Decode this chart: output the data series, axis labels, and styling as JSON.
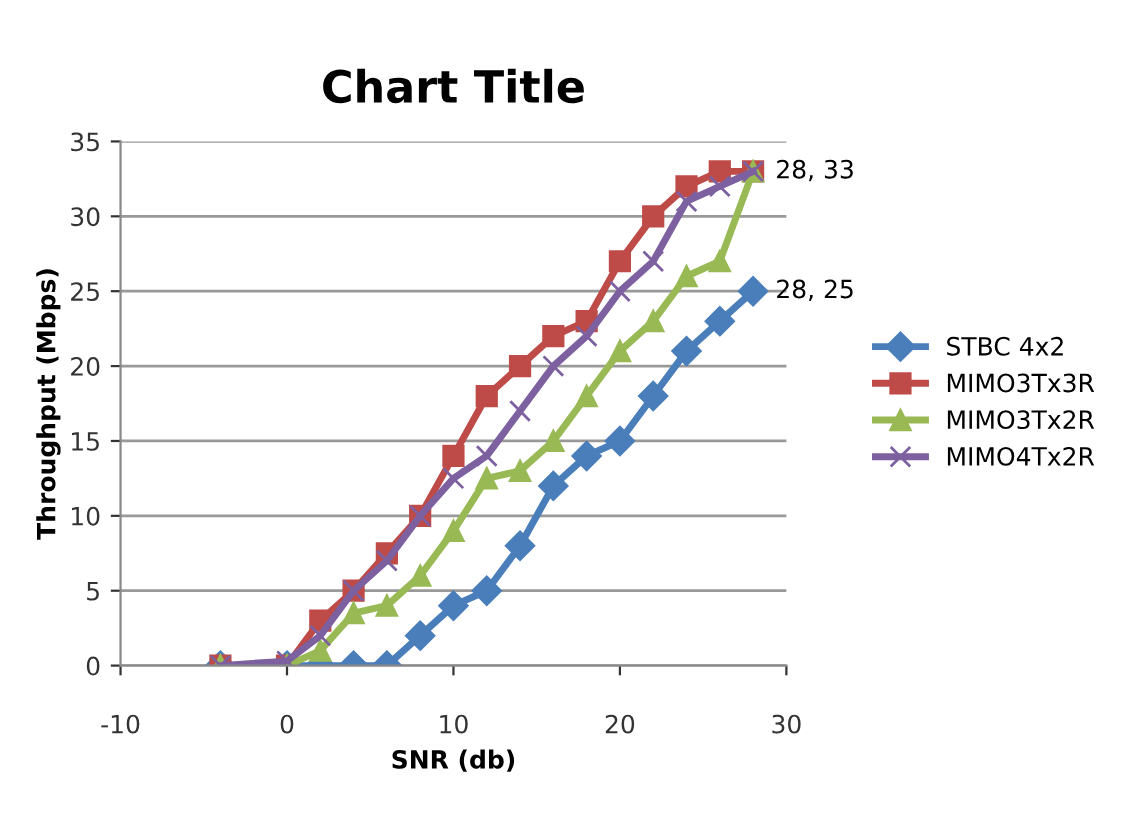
{
  "chart_data": {
    "type": "line",
    "title": "Chart Title",
    "xlabel": "SNR (db)",
    "ylabel": "Throughput (Mbps)",
    "x": [
      -4,
      0,
      2,
      4,
      6,
      8,
      10,
      12,
      14,
      16,
      18,
      20,
      22,
      24,
      26,
      28
    ],
    "series": [
      {
        "name": "STBC 4x2",
        "color": "#4a7ebb",
        "marker": "diamond",
        "values": [
          0,
          0,
          0,
          0,
          0,
          2,
          4,
          5,
          8,
          12,
          14,
          15,
          18,
          21,
          23,
          25
        ]
      },
      {
        "name": "MIMO3Tx3R",
        "color": "#be4b48",
        "marker": "square",
        "values": [
          0,
          0,
          3,
          5,
          7.5,
          10,
          14,
          18,
          20,
          22,
          23,
          27,
          30,
          32,
          33,
          33
        ]
      },
      {
        "name": "MIMO3Tx2R",
        "color": "#98b954",
        "marker": "triangle",
        "values": [
          0,
          0,
          1,
          3.5,
          4,
          6,
          9,
          12.5,
          13,
          15,
          18,
          21,
          23,
          26,
          27,
          33
        ]
      },
      {
        "name": "MIMO4Tx2R",
        "color": "#7d60a0",
        "marker": "cross",
        "values": [
          0,
          0.3,
          2,
          5,
          7,
          10,
          12.5,
          14,
          17,
          20,
          22,
          25,
          27,
          31,
          32,
          33
        ]
      }
    ],
    "xlim": [
      -10,
      30
    ],
    "xticks": [
      -10,
      0,
      10,
      20,
      30
    ],
    "ylim": [
      0,
      35
    ],
    "yticks": [
      0,
      5,
      10,
      15,
      20,
      25,
      30,
      35
    ],
    "grid": "y",
    "legend": "right",
    "annotations": [
      {
        "text": "28, 33",
        "x": 28,
        "y": 33
      },
      {
        "text": "28, 25",
        "x": 28,
        "y": 25
      }
    ]
  }
}
